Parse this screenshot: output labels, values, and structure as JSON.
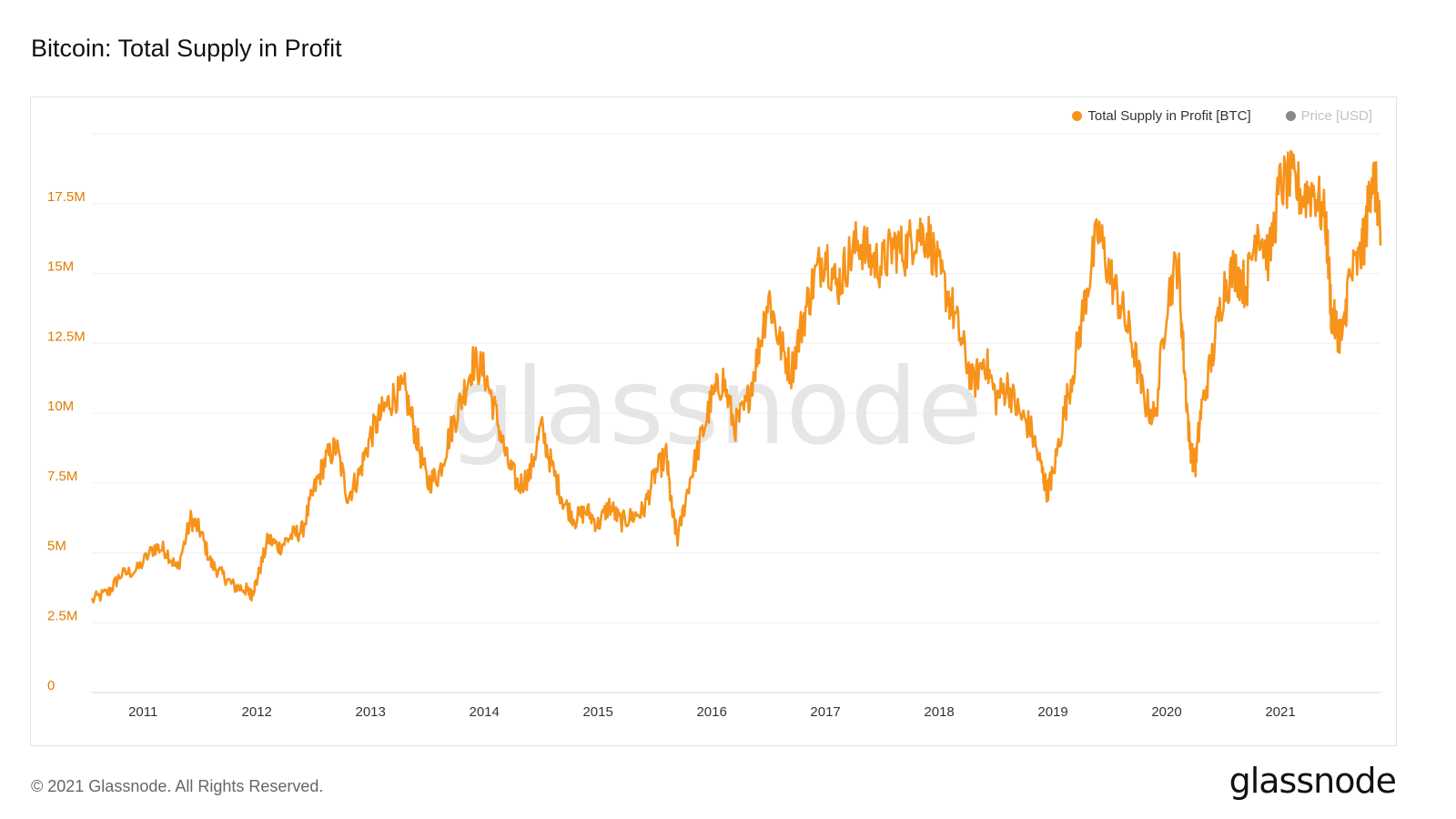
{
  "title": "Bitcoin: Total Supply in Profit",
  "footer": "© 2021 Glassnode. All Rights Reserved.",
  "brand": "glassnode",
  "watermark": "glassnode",
  "colors": {
    "series": "#f7931a",
    "price": "#888888",
    "grid": "#efefef",
    "tick_y": "#e07b00"
  },
  "legend": [
    {
      "label": "Total Supply in Profit [BTC]",
      "color": "#f7931a"
    },
    {
      "label": "Price [USD]",
      "color": "#888888"
    }
  ],
  "chart_data": {
    "type": "line",
    "title": "Bitcoin: Total Supply in Profit",
    "xlabel": "",
    "ylabel": "",
    "xlim": [
      2010.55,
      2021.88
    ],
    "ylim": [
      0,
      20000000
    ],
    "x_ticks": [
      2011,
      2012,
      2013,
      2014,
      2015,
      2016,
      2017,
      2018,
      2019,
      2020,
      2021
    ],
    "x_tick_labels": [
      "2011",
      "2012",
      "2013",
      "2014",
      "2015",
      "2016",
      "2017",
      "2018",
      "2019",
      "2020",
      "2021"
    ],
    "y_ticks": [
      0,
      2500000,
      5000000,
      7500000,
      10000000,
      12500000,
      15000000,
      17500000
    ],
    "y_tick_labels": [
      "0",
      "2.5M",
      "5M",
      "7.5M",
      "10M",
      "12.5M",
      "15M",
      "17.5M"
    ],
    "grid": true,
    "legend_position": "top-right",
    "series": [
      {
        "name": "Total Supply in Profit [BTC]",
        "color": "#f7931a",
        "x": [
          2010.55,
          2010.7,
          2010.8,
          2010.95,
          2011.1,
          2011.2,
          2011.3,
          2011.42,
          2011.5,
          2011.6,
          2011.7,
          2011.8,
          2011.9,
          2011.95,
          2012.0,
          2012.1,
          2012.2,
          2012.3,
          2012.4,
          2012.5,
          2012.6,
          2012.7,
          2012.8,
          2012.9,
          2013.0,
          2013.1,
          2013.2,
          2013.3,
          2013.4,
          2013.5,
          2013.6,
          2013.7,
          2013.8,
          2013.9,
          2014.0,
          2014.1,
          2014.2,
          2014.3,
          2014.4,
          2014.5,
          2014.6,
          2014.7,
          2014.8,
          2014.9,
          2015.0,
          2015.1,
          2015.2,
          2015.3,
          2015.4,
          2015.5,
          2015.6,
          2015.65,
          2015.7,
          2015.8,
          2015.9,
          2016.0,
          2016.1,
          2016.2,
          2016.3,
          2016.4,
          2016.5,
          2016.6,
          2016.7,
          2016.8,
          2016.9,
          2017.0,
          2017.1,
          2017.2,
          2017.3,
          2017.4,
          2017.5,
          2017.6,
          2017.7,
          2017.8,
          2017.9,
          2018.0,
          2018.1,
          2018.2,
          2018.3,
          2018.4,
          2018.5,
          2018.6,
          2018.7,
          2018.8,
          2018.9,
          2018.95,
          2019.0,
          2019.1,
          2019.2,
          2019.3,
          2019.4,
          2019.5,
          2019.6,
          2019.7,
          2019.8,
          2019.9,
          2020.0,
          2020.1,
          2020.15,
          2020.2,
          2020.25,
          2020.3,
          2020.4,
          2020.5,
          2020.6,
          2020.7,
          2020.8,
          2020.9,
          2021.0,
          2021.1,
          2021.2,
          2021.3,
          2021.4,
          2021.45,
          2021.5,
          2021.55,
          2021.6,
          2021.7,
          2021.75,
          2021.8,
          2021.85,
          2021.88
        ],
        "y": [
          3300000,
          3600000,
          4200000,
          4400000,
          5200000,
          5100000,
          4400000,
          6200000,
          5800000,
          4600000,
          4200000,
          3800000,
          3700000,
          3500000,
          4000000,
          5500000,
          5200000,
          5600000,
          5800000,
          7200000,
          8300000,
          8800000,
          7000000,
          7800000,
          9200000,
          10000000,
          10600000,
          10800000,
          9200000,
          7500000,
          7800000,
          9300000,
          10500000,
          11800000,
          11500000,
          10000000,
          8300000,
          7400000,
          7800000,
          9500000,
          8000000,
          6800000,
          6200000,
          6500000,
          6000000,
          6700000,
          6100000,
          6300000,
          6500000,
          7800000,
          8500000,
          6500000,
          5500000,
          7500000,
          9000000,
          10500000,
          11200000,
          9500000,
          10200000,
          12000000,
          14200000,
          12500000,
          11500000,
          13300000,
          14800000,
          15800000,
          14500000,
          15500000,
          16200000,
          15500000,
          15300000,
          16000000,
          15800000,
          16500000,
          16400000,
          15000000,
          14000000,
          12500000,
          11000000,
          12000000,
          10500000,
          11000000,
          10000000,
          9500000,
          8000000,
          7200000,
          7800000,
          10000000,
          12000000,
          14500000,
          16500000,
          15000000,
          13800000,
          12500000,
          10500000,
          9800000,
          14000000,
          15500000,
          12000000,
          9000000,
          8000000,
          10000000,
          12000000,
          14500000,
          15200000,
          14500000,
          16800000,
          15500000,
          18200000,
          18300000,
          17800000,
          18000000,
          16800000,
          13500000,
          13000000,
          12700000,
          14800000,
          15500000,
          16500000,
          18600000,
          17800000,
          16000000
        ]
      }
    ]
  }
}
